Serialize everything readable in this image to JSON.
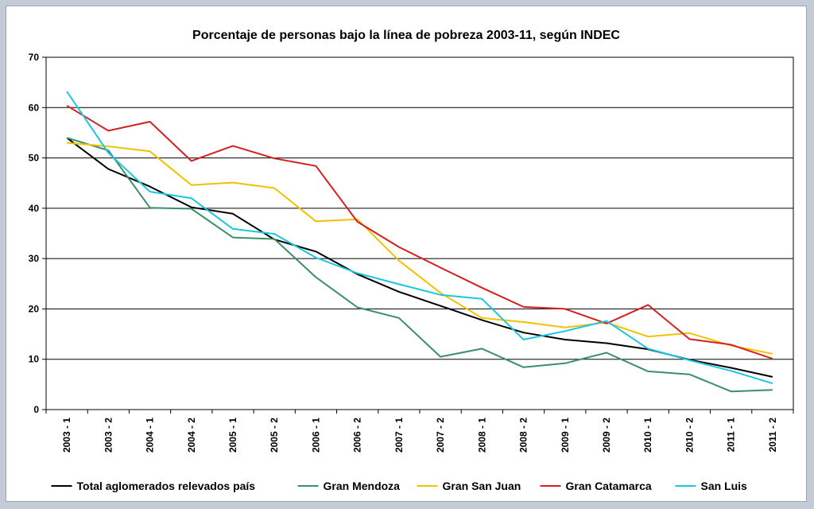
{
  "chart_data": {
    "type": "line",
    "title": "Porcentaje de personas bajo la línea de pobreza 2003-11, según INDEC",
    "xlabel": "",
    "ylabel": "",
    "ylim": [
      0,
      70
    ],
    "yticks": [
      "0",
      "10",
      "20",
      "30",
      "40",
      "50",
      "60",
      "70"
    ],
    "grid": true,
    "legend_position": "bottom",
    "categories": [
      "2003 - 1",
      "2003 - 2",
      "2004 - 1",
      "2004 - 2",
      "2005 - 1",
      "2005 - 2",
      "2006 - 1",
      "2006 - 2",
      "2007 - 1",
      "2007 - 2",
      "2008 - 1",
      "2008 - 2",
      "2009 - 1",
      "2009 - 2",
      "2010 - 1",
      "2010 - 2",
      "2011 - 1",
      "2011 - 2"
    ],
    "series": [
      {
        "name": "Total aglomerados relevados país",
        "color": "#000000",
        "values": [
          54.0,
          47.8,
          44.3,
          40.2,
          38.9,
          33.8,
          31.4,
          26.9,
          23.4,
          20.6,
          17.8,
          15.3,
          13.9,
          13.2,
          12.0,
          9.9,
          8.3,
          6.5
        ]
      },
      {
        "name": "Gran Mendoza",
        "color": "#3a8f6a",
        "values": [
          54.0,
          51.5,
          40.1,
          39.9,
          34.2,
          33.9,
          26.3,
          20.3,
          18.2,
          10.5,
          12.1,
          8.4,
          9.2,
          11.3,
          7.6,
          7.0,
          3.6,
          3.9
        ]
      },
      {
        "name": "Gran San Juan",
        "color": "#f2c200",
        "values": [
          53.0,
          52.3,
          51.3,
          44.6,
          45.1,
          44.0,
          37.4,
          37.8,
          29.6,
          23.2,
          18.2,
          17.4,
          16.3,
          17.3,
          14.5,
          15.2,
          12.7,
          11.1
        ]
      },
      {
        "name": "Gran Catamarca",
        "color": "#d42020",
        "values": [
          60.4,
          55.4,
          57.2,
          49.4,
          52.4,
          49.9,
          48.4,
          37.3,
          32.3,
          28.2,
          24.2,
          20.4,
          20.0,
          17.1,
          20.8,
          14.0,
          12.9,
          10.1
        ]
      },
      {
        "name": "San Luis",
        "color": "#1cc6e0",
        "values": [
          63.2,
          51.0,
          43.3,
          42.0,
          35.9,
          34.9,
          30.2,
          27.1,
          24.9,
          22.8,
          22.0,
          13.9,
          15.6,
          17.6,
          12.1,
          9.8,
          7.7,
          5.2
        ]
      }
    ]
  }
}
